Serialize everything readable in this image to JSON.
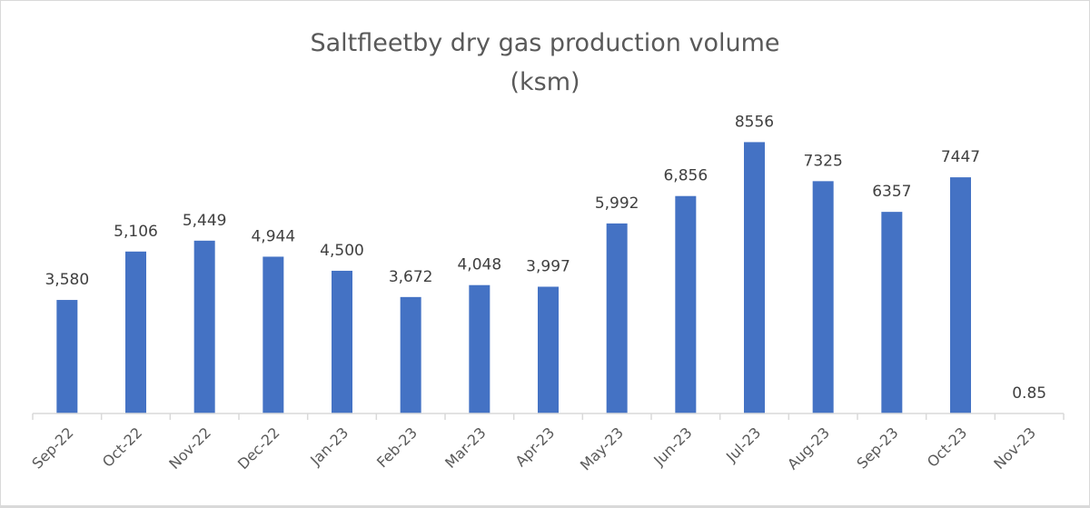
{
  "chart_data": {
    "type": "bar",
    "title": "Saltfleetby dry gas production volume",
    "subtitle": "(ksm)",
    "xlabel": "",
    "ylabel": "",
    "ylim": [
      0,
      10000
    ],
    "grid": false,
    "legend": "none",
    "bar_color": "#4472c4",
    "categories": [
      "Sep-22",
      "Oct-22",
      "Nov-22",
      "Dec-22",
      "Jan-23",
      "Feb-23",
      "Mar-23",
      "Apr-23",
      "May-23",
      "Jun-23",
      "Jul-23",
      "Aug-23",
      "Sep-23",
      "Oct-23",
      "Nov-23"
    ],
    "values": [
      3580,
      5106,
      5449,
      4944,
      4500,
      3672,
      4048,
      3997,
      5992,
      6856,
      8556,
      7325,
      6357,
      7447,
      0.85
    ],
    "data_labels": [
      "3,580",
      "5,106",
      "5,449",
      "4,944",
      "4,500",
      "3,672",
      "4,048",
      "3,997",
      "5,992",
      "6,856",
      "8556",
      "7325",
      "6357",
      "7447",
      "0.85"
    ]
  }
}
